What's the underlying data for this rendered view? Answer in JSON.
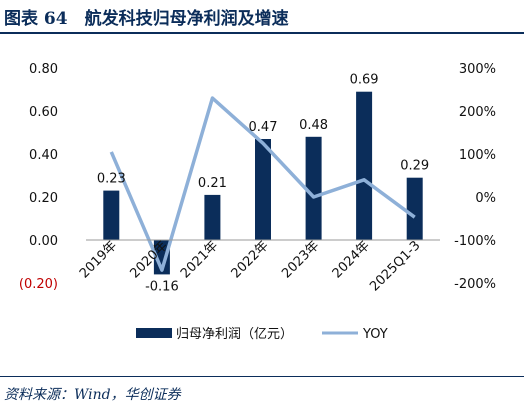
{
  "header": {
    "title": "图表 64　航发科技归母净利润及增速"
  },
  "footer": {
    "source": "资料来源：Wind，华创证券"
  },
  "colors": {
    "bar": "#0b2d5a",
    "line": "#8eb0d8",
    "negative_tick": "#c00000"
  },
  "chart_data": {
    "type": "bar",
    "categories": [
      "2019年",
      "2020年",
      "2021年",
      "2022年",
      "2023年",
      "2024年",
      "2025Q1-3"
    ],
    "series": [
      {
        "name": "归母净利润（亿元）",
        "type": "bar",
        "axis": "left",
        "values": [
          0.23,
          -0.16,
          0.21,
          0.47,
          0.48,
          0.69,
          0.29
        ],
        "data_labels": [
          "0.23",
          "-0.16",
          "0.21",
          "0.47",
          "0.48",
          "0.69",
          "0.29"
        ]
      },
      {
        "name": "YOY",
        "type": "line",
        "axis": "right",
        "values": [
          105,
          -170,
          230,
          125,
          0,
          40,
          -47
        ]
      }
    ],
    "y_left": {
      "ylim": [
        -0.2,
        0.8
      ],
      "ticks": [
        0.8,
        0.6,
        0.4,
        0.2,
        0.0,
        -0.2
      ],
      "tick_labels": [
        "0.80",
        "0.60",
        "0.40",
        "0.20",
        "0.00",
        "(0.20)"
      ]
    },
    "y_right": {
      "ylim": [
        -200,
        300
      ],
      "ticks": [
        300,
        200,
        100,
        0,
        -100,
        -200
      ],
      "tick_labels": [
        "300%",
        "200%",
        "100%",
        "0%",
        "-100%",
        "-200%"
      ]
    },
    "legend": "bottom",
    "grid": false
  }
}
